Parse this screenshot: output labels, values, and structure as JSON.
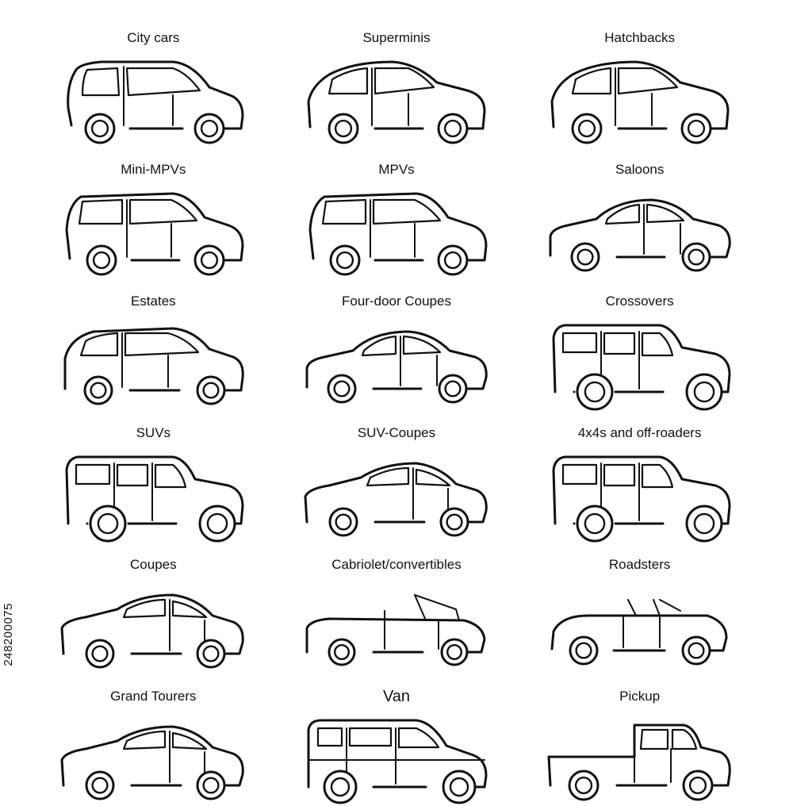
{
  "vehicles": [
    {
      "label": "City cars",
      "shape": "city"
    },
    {
      "label": "Superminis",
      "shape": "hatch"
    },
    {
      "label": "Hatchbacks",
      "shape": "hatch"
    },
    {
      "label": "Mini-MPVs",
      "shape": "mpv"
    },
    {
      "label": "MPVs",
      "shape": "mpv"
    },
    {
      "label": "Saloons",
      "shape": "saloon"
    },
    {
      "label": "Estates",
      "shape": "estate"
    },
    {
      "label": "Four-door Coupes",
      "shape": "saloon"
    },
    {
      "label": "Crossovers",
      "shape": "suv"
    },
    {
      "label": "SUVs",
      "shape": "suv"
    },
    {
      "label": "SUV-Coupes",
      "shape": "coupe"
    },
    {
      "label": "4x4s and off-roaders",
      "shape": "suv"
    },
    {
      "label": "Coupes",
      "shape": "coupe"
    },
    {
      "label": "Cabriolet/convertibles",
      "shape": "cabrio"
    },
    {
      "label": "Roadsters",
      "shape": "roadster"
    },
    {
      "label": "Grand Tourers",
      "shape": "coupe"
    },
    {
      "label": "Van",
      "shape": "van"
    },
    {
      "label": "Pickup",
      "shape": "pickup"
    }
  ],
  "watermark": "248200075"
}
